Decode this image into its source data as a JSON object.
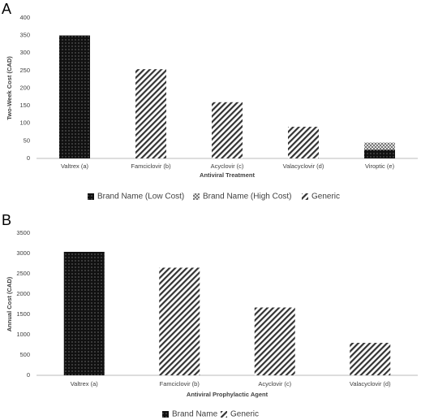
{
  "chart_data": [
    {
      "type": "bar",
      "stacked": true,
      "label": "A",
      "x_label": "Antiviral Treatment",
      "y_label": "Two-Week Cost (CAD)",
      "categories": [
        "Valtrex (a)",
        "Famciclovir (b)",
        "Acyclovir (c)",
        "Valacyclovir (d)",
        "Viroptic (e)"
      ],
      "series": [
        {
          "name": "Brand Name (Low Cost)",
          "color": "#111111",
          "pattern": "dots",
          "values": [
            350,
            null,
            null,
            null,
            25
          ]
        },
        {
          "name": "Brand Name (High Cost)",
          "color": "#777777",
          "pattern": "checker",
          "values": [
            null,
            null,
            null,
            null,
            20
          ]
        },
        {
          "name": "Generic",
          "color": "#333333",
          "pattern": "hatch",
          "values": [
            null,
            254,
            160,
            90,
            null
          ]
        }
      ],
      "ylim": [
        0,
        400
      ],
      "yticks": [
        0,
        50,
        100,
        150,
        200,
        250,
        300,
        350,
        400
      ],
      "grid": false,
      "legend": "bottom"
    },
    {
      "type": "bar",
      "stacked": true,
      "label": "B",
      "x_label": "Antiviral Prophylactic Agent",
      "y_label": "Annual Cost (CAD)",
      "categories": [
        "Valtrex (a)",
        "Famciclovir (b)",
        "Acyclovir (c)",
        "Valacyclovir (d)"
      ],
      "series": [
        {
          "name": "Brand Name",
          "color": "#111111",
          "pattern": "dots",
          "values": [
            3040,
            null,
            null,
            null
          ]
        },
        {
          "name": "Generic",
          "color": "#333333",
          "pattern": "hatch",
          "values": [
            null,
            2650,
            1670,
            800
          ]
        }
      ],
      "ylim": [
        0,
        3500
      ],
      "yticks": [
        0,
        500,
        1000,
        1500,
        2000,
        2500,
        3000,
        3500
      ],
      "grid": false,
      "legend": "bottom"
    }
  ]
}
